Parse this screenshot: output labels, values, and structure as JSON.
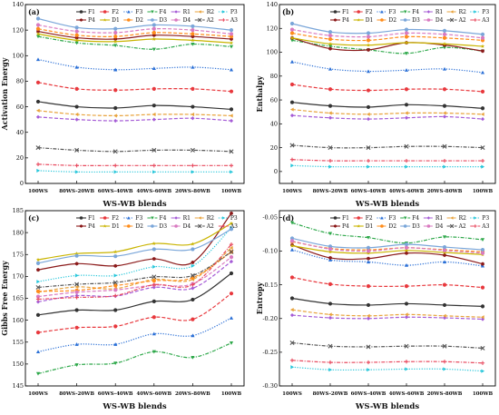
{
  "series_styles": {
    "F1": {
      "color": "#333333",
      "marker": "circle",
      "dash": "solid"
    },
    "F2": {
      "color": "#e8383d",
      "marker": "circle",
      "dash": "dash"
    },
    "F3": {
      "color": "#2a6fd6",
      "marker": "triangle",
      "dash": "dot"
    },
    "F4": {
      "color": "#2ea84a",
      "marker": "triangle-down",
      "dash": "dashdot"
    },
    "R1": {
      "color": "#a55bd6",
      "marker": "diamond",
      "dash": "dash"
    },
    "R2": {
      "color": "#e8a33c",
      "marker": "triangle-left",
      "dash": "dash"
    },
    "P3": {
      "color": "#26c6da",
      "marker": "triangle-right",
      "dash": "dot"
    },
    "P4": {
      "color": "#8b1a1a",
      "marker": "hexagon",
      "dash": "solid"
    },
    "D1": {
      "color": "#c9b400",
      "marker": "star",
      "dash": "solid"
    },
    "D2": {
      "color": "#ff8c1a",
      "marker": "circle",
      "dash": "dash"
    },
    "D3": {
      "color": "#7aa6d9",
      "marker": "circle",
      "dash": "solid"
    },
    "D4": {
      "color": "#d97ac0",
      "marker": "circle",
      "dash": "dash"
    },
    "A2": {
      "color": "#555555",
      "marker": "x",
      "dash": "dashdot"
    },
    "A3": {
      "color": "#e84a5f",
      "marker": "plus",
      "dash": "dashdot"
    }
  },
  "legend_order": [
    "F1",
    "F2",
    "F3",
    "F4",
    "R1",
    "R2",
    "P3",
    "P4",
    "D1",
    "D2",
    "D3",
    "D4",
    "A2",
    "A3"
  ],
  "chart_data": [
    {
      "panel": "(a)",
      "type": "line",
      "ylabel": "Activation Energy",
      "xlabel": "WS-WB blends",
      "categories": [
        "100WS",
        "80WS-20WB",
        "60WS-40WB",
        "40WS-60WB",
        "20WS-80WB",
        "100WB"
      ],
      "ylim": [
        0,
        140
      ],
      "yticks": [
        0,
        20,
        40,
        60,
        80,
        100,
        120,
        140
      ],
      "series": [
        {
          "name": "F1",
          "values": [
            64,
            60,
            59,
            61,
            60,
            58
          ]
        },
        {
          "name": "F2",
          "values": [
            79,
            74,
            73,
            74,
            74,
            72
          ]
        },
        {
          "name": "F3",
          "values": [
            97,
            91,
            89,
            90,
            91,
            89
          ]
        },
        {
          "name": "F4",
          "values": [
            115,
            110,
            108,
            105,
            109,
            107
          ]
        },
        {
          "name": "R1",
          "values": [
            52,
            50,
            49,
            50,
            51,
            49
          ]
        },
        {
          "name": "R2",
          "values": [
            57,
            54,
            53,
            54,
            54,
            53
          ]
        },
        {
          "name": "P3",
          "values": [
            10,
            9,
            9,
            9,
            9,
            9
          ]
        },
        {
          "name": "P4",
          "values": [
            119,
            114,
            113,
            116,
            115,
            113
          ]
        },
        {
          "name": "D1",
          "values": [
            117,
            112,
            111,
            113,
            112,
            110
          ]
        },
        {
          "name": "D2",
          "values": [
            121,
            116,
            115,
            118,
            117,
            115
          ]
        },
        {
          "name": "D3",
          "values": [
            129,
            122,
            121,
            124,
            123,
            120
          ]
        },
        {
          "name": "D4",
          "values": [
            124,
            119,
            118,
            121,
            120,
            117
          ]
        },
        {
          "name": "A2",
          "values": [
            28,
            26,
            25,
            26,
            26,
            25
          ]
        },
        {
          "name": "A3",
          "values": [
            15,
            14,
            14,
            14,
            14,
            14
          ]
        }
      ]
    },
    {
      "panel": "(b)",
      "type": "line",
      "ylabel": "Enthalpy",
      "xlabel": "WS-WB blends",
      "categories": [
        "100WS",
        "80WS-20WB",
        "60WS-40WB",
        "40WS-60WB",
        "20WS-80WB",
        "100WB"
      ],
      "ylim": [
        -10,
        140
      ],
      "yticks": [
        0,
        20,
        40,
        60,
        80,
        100,
        120,
        140
      ],
      "series": [
        {
          "name": "F1",
          "values": [
            58,
            55,
            54,
            56,
            55,
            53
          ]
        },
        {
          "name": "F2",
          "values": [
            73,
            69,
            68,
            69,
            69,
            67
          ]
        },
        {
          "name": "F3",
          "values": [
            92,
            86,
            84,
            85,
            86,
            83
          ]
        },
        {
          "name": "F4",
          "values": [
            110,
            105,
            102,
            99,
            104,
            101
          ]
        },
        {
          "name": "R1",
          "values": [
            47,
            45,
            44,
            45,
            46,
            44
          ]
        },
        {
          "name": "R2",
          "values": [
            52,
            49,
            48,
            49,
            49,
            48
          ]
        },
        {
          "name": "P3",
          "values": [
            5,
            4,
            4,
            4,
            4,
            4
          ]
        },
        {
          "name": "P4",
          "values": [
            112,
            103,
            102,
            108,
            106,
            101
          ]
        },
        {
          "name": "D1",
          "values": [
            112,
            107,
            106,
            108,
            107,
            105
          ]
        },
        {
          "name": "D2",
          "values": [
            116,
            111,
            110,
            113,
            112,
            110
          ]
        },
        {
          "name": "D3",
          "values": [
            124,
            117,
            116,
            119,
            118,
            115
          ]
        },
        {
          "name": "D4",
          "values": [
            119,
            114,
            113,
            116,
            115,
            112
          ]
        },
        {
          "name": "A2",
          "values": [
            22,
            20,
            20,
            21,
            21,
            20
          ]
        },
        {
          "name": "A3",
          "values": [
            10,
            9,
            9,
            9,
            9,
            9
          ]
        }
      ]
    },
    {
      "panel": "(c)",
      "type": "line",
      "ylabel": "Gibbs Free Energy",
      "xlabel": "WS-WB blends",
      "categories": [
        "100WS",
        "80WS-20WB",
        "60WS-40WB",
        "40WS-60WB",
        "20WS-80WB",
        "100WB"
      ],
      "ylim": [
        145,
        185
      ],
      "yticks": [
        145,
        150,
        155,
        160,
        165,
        170,
        175,
        180,
        185
      ],
      "series": [
        {
          "name": "F1",
          "values": [
            161.2,
            162.3,
            162.3,
            164.3,
            164.7,
            170.7
          ]
        },
        {
          "name": "F2",
          "values": [
            157.2,
            158.3,
            158.6,
            160.7,
            160.2,
            166.1
          ]
        },
        {
          "name": "F3",
          "values": [
            152.8,
            154.5,
            154.5,
            156.9,
            156.5,
            160.5
          ]
        },
        {
          "name": "F4",
          "values": [
            147.8,
            149.8,
            150.2,
            152.8,
            151.5,
            154.8
          ]
        },
        {
          "name": "R1",
          "values": [
            164.2,
            165.6,
            165.5,
            167.5,
            167.3,
            173.4
          ]
        },
        {
          "name": "R2",
          "values": [
            166.4,
            167.6,
            167.2,
            169.3,
            169.3,
            176.5
          ]
        },
        {
          "name": "P3",
          "values": [
            168.8,
            170.2,
            170.2,
            172.2,
            172.4,
            181.1
          ]
        },
        {
          "name": "P4",
          "values": [
            171.5,
            172.9,
            172.4,
            174.0,
            173.2,
            184.4
          ]
        },
        {
          "name": "D1",
          "values": [
            173.8,
            175.2,
            175.6,
            177.5,
            177.4,
            182.1
          ]
        },
        {
          "name": "D2",
          "values": [
            166.6,
            166.8,
            167.9,
            169.0,
            169.7,
            175.6
          ]
        },
        {
          "name": "D3",
          "values": [
            173.0,
            174.7,
            174.6,
            176.2,
            176.2,
            180.8
          ]
        },
        {
          "name": "D4",
          "values": [
            165.4,
            166.4,
            166.9,
            168.0,
            168.3,
            174.4
          ]
        },
        {
          "name": "A2",
          "values": [
            167.5,
            168.2,
            168.6,
            169.9,
            170.2,
            175.6
          ]
        },
        {
          "name": "A3",
          "values": [
            164.8,
            165.2,
            165.6,
            168.1,
            168.1,
            177.3
          ]
        }
      ]
    },
    {
      "panel": "(d)",
      "type": "line",
      "ylabel": "Entropy",
      "xlabel": "WS-WB blends",
      "categories": [
        "100WS",
        "80WS-20WB",
        "60WS-40WB",
        "40WS-60WB",
        "20WS-80WB",
        "100WB"
      ],
      "ylim": [
        -0.3,
        -0.04
      ],
      "yticks": [
        -0.3,
        -0.25,
        -0.2,
        -0.15,
        -0.1,
        -0.05
      ],
      "ytick_labels": [
        "-0.30",
        "-0.25",
        "-0.20",
        "-0.15",
        "-0.10",
        "-0.05"
      ],
      "series": [
        {
          "name": "F1",
          "values": [
            -0.17,
            -0.178,
            -0.18,
            -0.178,
            -0.18,
            -0.182
          ]
        },
        {
          "name": "F2",
          "values": [
            -0.139,
            -0.149,
            -0.152,
            -0.152,
            -0.15,
            -0.154
          ]
        },
        {
          "name": "F3",
          "values": [
            -0.098,
            -0.113,
            -0.116,
            -0.121,
            -0.116,
            -0.122
          ]
        },
        {
          "name": "F4",
          "values": [
            -0.058,
            -0.074,
            -0.08,
            -0.088,
            -0.079,
            -0.083
          ]
        },
        {
          "name": "R1",
          "values": [
            -0.195,
            -0.199,
            -0.2,
            -0.198,
            -0.199,
            -0.201
          ]
        },
        {
          "name": "R2",
          "values": [
            -0.187,
            -0.194,
            -0.196,
            -0.194,
            -0.196,
            -0.198
          ]
        },
        {
          "name": "P3",
          "values": [
            -0.272,
            -0.276,
            -0.276,
            -0.275,
            -0.275,
            -0.278
          ]
        },
        {
          "name": "P4",
          "values": [
            -0.091,
            -0.11,
            -0.111,
            -0.103,
            -0.106,
            -0.119
          ]
        },
        {
          "name": "D1",
          "values": [
            -0.092,
            -0.101,
            -0.103,
            -0.099,
            -0.102,
            -0.105
          ]
        },
        {
          "name": "D2",
          "values": [
            -0.086,
            -0.096,
            -0.098,
            -0.095,
            -0.098,
            -0.101
          ]
        },
        {
          "name": "D3",
          "values": [
            -0.081,
            -0.093,
            -0.095,
            -0.09,
            -0.094,
            -0.098
          ]
        },
        {
          "name": "D4",
          "values": [
            -0.085,
            -0.097,
            -0.1,
            -0.095,
            -0.099,
            -0.103
          ]
        },
        {
          "name": "A2",
          "values": [
            -0.236,
            -0.241,
            -0.242,
            -0.241,
            -0.241,
            -0.244
          ]
        },
        {
          "name": "A3",
          "values": [
            -0.262,
            -0.265,
            -0.265,
            -0.264,
            -0.264,
            -0.266
          ]
        }
      ]
    }
  ]
}
